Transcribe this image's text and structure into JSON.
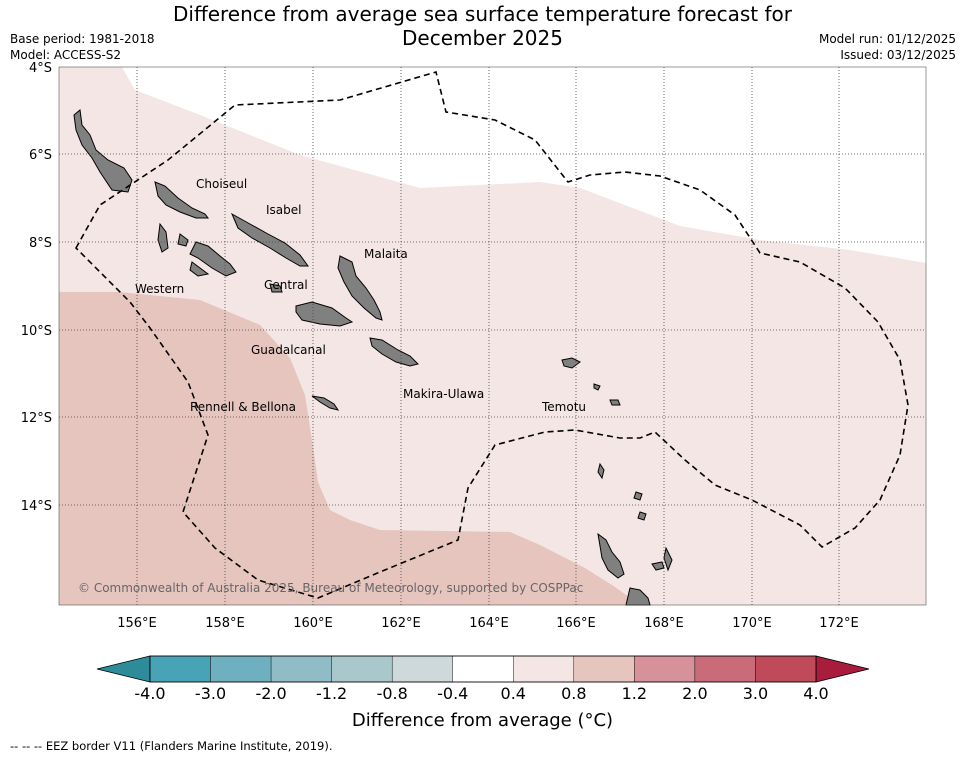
{
  "title_line1": "Difference from average sea surface temperature forecast for",
  "title_line2": "December 2025",
  "meta_left": [
    "Base period: 1981-2018",
    "Model: ACCESS-S2"
  ],
  "meta_right": [
    "Model run: 01/12/2025",
    "Issued: 03/12/2025"
  ],
  "map": {
    "lat_labels": [
      "4°S",
      "6°S",
      "8°S",
      "10°S",
      "12°S",
      "14°S"
    ],
    "lon_labels": [
      "156°E",
      "158°E",
      "160°E",
      "162°E",
      "164°E",
      "166°E",
      "168°E",
      "170°E",
      "172°E"
    ],
    "region_labels": [
      "Choiseul",
      "Isabel",
      "Malaita",
      "Western",
      "Central",
      "Guadalcanal",
      "Rennell & Bellona",
      "Makira-Ulawa",
      "Temotu"
    ],
    "copyright": "© Commonwealth of Australia 2025, Bureau of Meteorology, supported by COSPPac"
  },
  "colorbar": {
    "ticks": [
      "-4.0",
      "-3.0",
      "-2.0",
      "-1.2",
      "-0.8",
      "-0.4",
      "0.4",
      "0.8",
      "1.2",
      "2.0",
      "3.0",
      "4.0"
    ],
    "colors": [
      "#2e8b99",
      "#47a3b5",
      "#6fb0c0",
      "#8fbcc6",
      "#a9c8cc",
      "#cdd9db",
      "#ffffff",
      "#f4e6e4",
      "#e6c5bf",
      "#d6919a",
      "#c96b78",
      "#be4a5a",
      "#a81c3c"
    ],
    "label": "Difference from average (°C)"
  },
  "footer": "--  --  -- EEZ border V11 (Flanders Marine Institute, 2019)."
}
